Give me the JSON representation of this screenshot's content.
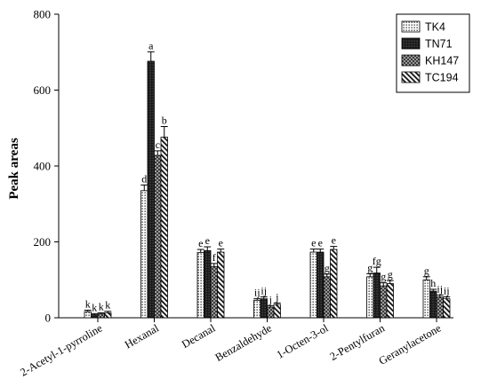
{
  "chart_data": {
    "type": "bar",
    "ylabel": "Peak areas",
    "xlabel": "",
    "ylim": [
      0,
      800
    ],
    "yticks": [
      0,
      200,
      400,
      600,
      800
    ],
    "categories": [
      "2-Acetyl-1-pyrroline",
      "Hexanal",
      "Decanal",
      "Benzaldehyde",
      "1-Octen-3-ol",
      "2-Pentylfuran",
      "Geranylacetone"
    ],
    "series": [
      {
        "name": "TK4",
        "pattern": "dots",
        "values": [
          16,
          335,
          172,
          46,
          173,
          108,
          100
        ],
        "errors": [
          4,
          15,
          8,
          4,
          8,
          8,
          8
        ],
        "letters": [
          "k",
          "d",
          "e",
          "ij",
          "e",
          "g",
          "g"
        ]
      },
      {
        "name": "TN71",
        "pattern": "solid-dark",
        "values": [
          8,
          676,
          177,
          50,
          173,
          118,
          70
        ],
        "errors": [
          3,
          25,
          10,
          5,
          8,
          15,
          5
        ],
        "letters": [
          "k",
          "a",
          "e",
          "ij",
          "e",
          "fg",
          "h"
        ]
      },
      {
        "name": "KH147",
        "pattern": "checker",
        "values": [
          10,
          428,
          135,
          28,
          108,
          84,
          55
        ],
        "errors": [
          3,
          12,
          8,
          4,
          7,
          8,
          5
        ],
        "letters": [
          "k",
          "c",
          "f",
          "j",
          "g",
          "g",
          "ij"
        ]
      },
      {
        "name": "TC194",
        "pattern": "diagonal",
        "values": [
          13,
          476,
          173,
          35,
          180,
          90,
          50
        ],
        "errors": [
          4,
          28,
          8,
          4,
          8,
          8,
          5
        ],
        "letters": [
          "k",
          "b",
          "e",
          "j",
          "e",
          "g",
          "ij"
        ]
      }
    ],
    "grid": false,
    "legend_position": "top-right"
  }
}
